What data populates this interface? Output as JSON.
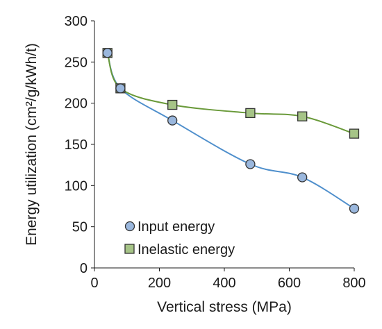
{
  "chart_data": {
    "type": "line",
    "title": "",
    "xlabel": "Vertical stress (MPa)",
    "ylabel": "Energy utilization (cm²/g/kWh/t)",
    "xlim": [
      0,
      800
    ],
    "ylim": [
      0,
      300
    ],
    "xticks": [
      "0",
      "200",
      "400",
      "600",
      "800"
    ],
    "yticks": [
      "0",
      "50",
      "100",
      "150",
      "200",
      "250",
      "300"
    ],
    "grid": false,
    "legend_position": "bottom-left",
    "series": [
      {
        "name": "Input energy",
        "marker": "circle",
        "line_color": "#4f8fcc",
        "marker_fill": "#9ab7dd",
        "x": [
          40,
          80,
          240,
          480,
          640,
          800
        ],
        "y": [
          261,
          218,
          179,
          126,
          110,
          72
        ]
      },
      {
        "name": "Inelastic energy",
        "marker": "square",
        "line_color": "#6a9a3a",
        "marker_fill": "#a6c487",
        "x": [
          40,
          80,
          240,
          480,
          640,
          800
        ],
        "y": [
          261,
          218,
          198,
          188,
          184,
          163
        ]
      }
    ]
  }
}
